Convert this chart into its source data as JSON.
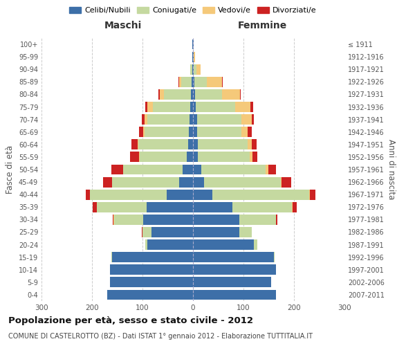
{
  "age_groups": [
    "0-4",
    "5-9",
    "10-14",
    "15-19",
    "20-24",
    "25-29",
    "30-34",
    "35-39",
    "40-44",
    "45-49",
    "50-54",
    "55-59",
    "60-64",
    "65-69",
    "70-74",
    "75-79",
    "80-84",
    "85-89",
    "90-94",
    "95-99",
    "100+"
  ],
  "birth_years": [
    "2007-2011",
    "2002-2006",
    "1997-2001",
    "1992-1996",
    "1987-1991",
    "1982-1986",
    "1977-1981",
    "1972-1976",
    "1967-1971",
    "1962-1966",
    "1957-1961",
    "1952-1956",
    "1947-1951",
    "1942-1946",
    "1937-1941",
    "1932-1936",
    "1927-1931",
    "1922-1926",
    "1917-1921",
    "1912-1916",
    "≤ 1911"
  ],
  "male_celibe": [
    170,
    165,
    165,
    160,
    90,
    82,
    98,
    92,
    52,
    28,
    20,
    13,
    10,
    8,
    7,
    6,
    4,
    3,
    2,
    1,
    1
  ],
  "male_coniugato": [
    0,
    0,
    0,
    2,
    5,
    18,
    58,
    98,
    152,
    132,
    118,
    93,
    98,
    88,
    84,
    73,
    54,
    20,
    3,
    0,
    0
  ],
  "male_vedovo": [
    0,
    0,
    0,
    0,
    0,
    0,
    1,
    0,
    0,
    0,
    1,
    1,
    2,
    3,
    5,
    12,
    8,
    5,
    1,
    0,
    0
  ],
  "male_divorziato": [
    0,
    0,
    0,
    0,
    0,
    1,
    2,
    8,
    8,
    18,
    22,
    18,
    12,
    8,
    5,
    3,
    2,
    1,
    0,
    0,
    0
  ],
  "female_nubile": [
    165,
    155,
    165,
    160,
    120,
    92,
    92,
    78,
    38,
    22,
    16,
    10,
    10,
    8,
    8,
    6,
    4,
    3,
    2,
    2,
    1
  ],
  "female_coniugata": [
    0,
    0,
    0,
    2,
    8,
    24,
    72,
    118,
    192,
    152,
    128,
    103,
    98,
    88,
    88,
    78,
    54,
    25,
    5,
    0,
    0
  ],
  "female_vedova": [
    0,
    0,
    0,
    0,
    0,
    0,
    1,
    1,
    2,
    2,
    5,
    5,
    8,
    12,
    20,
    30,
    35,
    30,
    8,
    2,
    1
  ],
  "female_divorziata": [
    0,
    0,
    0,
    0,
    0,
    1,
    2,
    8,
    10,
    18,
    15,
    10,
    10,
    8,
    5,
    5,
    2,
    1,
    0,
    0,
    0
  ],
  "colors": {
    "celibe": "#3d6fa8",
    "coniugato": "#c5d9a0",
    "vedovo": "#f5c97a",
    "divorziato": "#cc2222"
  },
  "title": "Popolazione per età, sesso e stato civile - 2012",
  "subtitle": "COMUNE DI CASTELROTTO (BZ) - Dati ISTAT 1° gennaio 2012 - Elaborazione TUTTITALIA.IT",
  "xlabel_left": "Maschi",
  "xlabel_right": "Femmine",
  "ylabel": "Fasce di età",
  "ylabel_right": "Anni di nascita",
  "xlim": 300,
  "legend_labels": [
    "Celibi/Nubili",
    "Coniugati/e",
    "Vedovi/e",
    "Divorziati/e"
  ]
}
